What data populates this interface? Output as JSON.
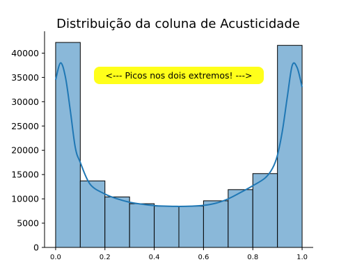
{
  "chart_data": {
    "type": "histogram",
    "title": "Distribuição da coluna de Acusticidade",
    "xlabel": "",
    "ylabel": "",
    "x_ticks": [
      0.0,
      0.2,
      0.4,
      0.6,
      0.8,
      1.0
    ],
    "x_tick_labels": [
      "0.0",
      "0.2",
      "0.4",
      "0.6",
      "0.8",
      "1.0"
    ],
    "y_ticks": [
      0,
      5000,
      10000,
      15000,
      20000,
      25000,
      30000,
      35000,
      40000
    ],
    "y_tick_labels": [
      "0",
      "5000",
      "10000",
      "15000",
      "20000",
      "25000",
      "30000",
      "35000",
      "40000"
    ],
    "xlim": [
      -0.045,
      1.045
    ],
    "ylim": [
      0,
      44500
    ],
    "bins": [
      {
        "start": 0.0,
        "end": 0.1,
        "count": 42200
      },
      {
        "start": 0.1,
        "end": 0.2,
        "count": 13700
      },
      {
        "start": 0.2,
        "end": 0.3,
        "count": 10400
      },
      {
        "start": 0.3,
        "end": 0.4,
        "count": 9000
      },
      {
        "start": 0.4,
        "end": 0.5,
        "count": 8500
      },
      {
        "start": 0.5,
        "end": 0.6,
        "count": 8500
      },
      {
        "start": 0.6,
        "end": 0.7,
        "count": 9600
      },
      {
        "start": 0.7,
        "end": 0.8,
        "count": 11900
      },
      {
        "start": 0.8,
        "end": 0.9,
        "count": 15200
      },
      {
        "start": 0.9,
        "end": 1.0,
        "count": 41600
      }
    ],
    "kde": {
      "x": [
        0.0,
        0.02,
        0.04,
        0.06,
        0.08,
        0.1,
        0.14,
        0.2,
        0.25,
        0.3,
        0.35,
        0.4,
        0.45,
        0.5,
        0.55,
        0.6,
        0.65,
        0.7,
        0.75,
        0.8,
        0.85,
        0.88,
        0.9,
        0.92,
        0.94,
        0.96,
        0.98,
        1.0
      ],
      "y": [
        34500,
        38000,
        35000,
        28000,
        20500,
        17500,
        13000,
        11000,
        10000,
        9300,
        8900,
        8600,
        8500,
        8450,
        8500,
        8650,
        9100,
        10000,
        11300,
        12700,
        14300,
        16300,
        19000,
        24000,
        31000,
        37500,
        37000,
        33000
      ]
    },
    "annotation": "<--- Picos nos dois extremos! --->",
    "grid": false,
    "legend": "none",
    "colors": {
      "bar_fill": "#8ab8d9",
      "bar_edge": "#000000",
      "kde_line": "#1f77b4",
      "annotation_bg": "#ffff1a"
    }
  }
}
